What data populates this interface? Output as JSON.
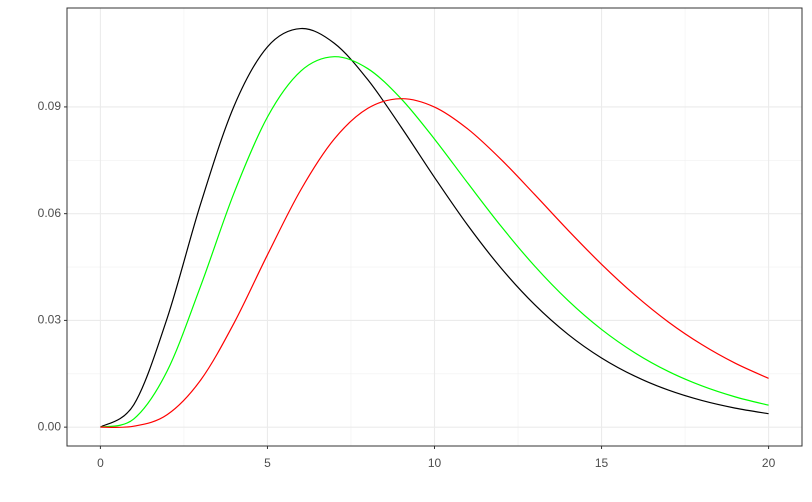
{
  "chart_data": {
    "type": "line",
    "x": [
      0,
      1,
      2,
      3,
      4,
      5,
      6,
      7,
      8,
      9,
      10,
      11,
      12,
      13,
      14,
      15,
      16,
      17,
      18,
      19,
      20
    ],
    "series": [
      {
        "color": "#000000",
        "values": [
          0,
          0.00632,
          0.03066,
          0.06276,
          0.09023,
          0.10688,
          0.11202,
          0.10789,
          0.09769,
          0.08436,
          0.07019,
          0.05666,
          0.04462,
          0.03441,
          0.02606,
          0.01944,
          0.01431,
          0.01041,
          0.0075,
          0.00535,
          0.00378
        ]
      },
      {
        "color": "#00ff00",
        "values": [
          0,
          0.00231,
          0.01581,
          0.03965,
          0.06582,
          0.08717,
          0.10008,
          0.10411,
          0.10078,
          0.09231,
          0.08096,
          0.06854,
          0.05638,
          0.04525,
          0.03557,
          0.02746,
          0.02088,
          0.01565,
          0.01161,
          0.00851,
          0.00617
        ]
      },
      {
        "color": "#ff0000",
        "values": [
          0,
          0.00026,
          0.00351,
          0.01322,
          0.02925,
          0.04843,
          0.06672,
          0.08097,
          0.08958,
          0.09231,
          0.08996,
          0.08377,
          0.07517,
          0.06536,
          0.05533,
          0.04577,
          0.03712,
          0.02956,
          0.02322,
          0.01797,
          0.01371
        ]
      }
    ],
    "xlim": [
      -1,
      21
    ],
    "xticks": [
      0,
      5,
      10,
      15,
      20
    ],
    "ylim": [
      -0.0053,
      0.1178
    ],
    "yticks": [
      {
        "value": 0,
        "label": "0.00"
      },
      {
        "value": 0.03,
        "label": "0.03"
      },
      {
        "value": 0.06,
        "label": "0.06"
      },
      {
        "value": 0.09,
        "label": "0.09"
      }
    ],
    "grid": true
  }
}
